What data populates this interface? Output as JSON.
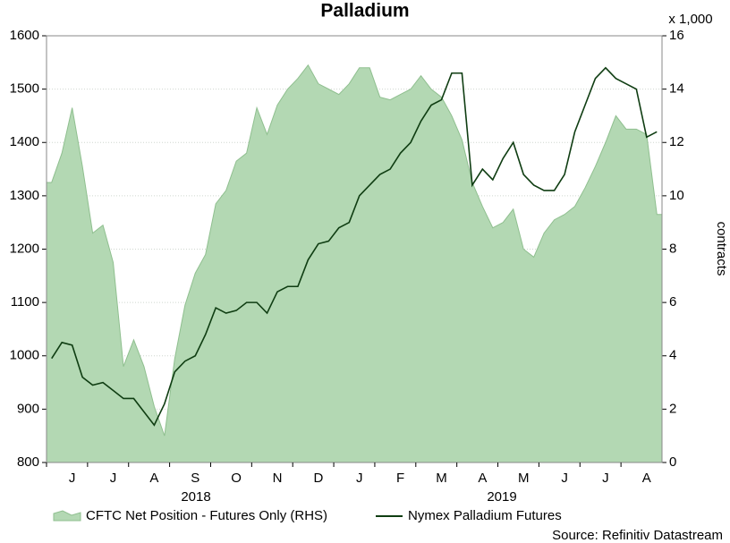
{
  "chart_data": {
    "type": "line",
    "title": "Palladium",
    "y2_unit": "x 1,000",
    "y2_label": "contracts",
    "year_labels": [
      "2018",
      "2019"
    ],
    "source": "Source: Refinitiv Datastream",
    "categories": [
      null,
      null,
      "J",
      null,
      null,
      null,
      "J",
      null,
      null,
      null,
      "A",
      null,
      null,
      null,
      "S",
      null,
      null,
      null,
      "O",
      null,
      null,
      null,
      "N",
      null,
      null,
      null,
      "D",
      null,
      null,
      null,
      "J",
      null,
      null,
      null,
      "F",
      null,
      null,
      null,
      "M",
      null,
      null,
      null,
      "A",
      null,
      null,
      null,
      "M",
      null,
      null,
      null,
      "J",
      null,
      null,
      null,
      "J",
      null,
      null,
      null,
      "A",
      null
    ],
    "ylim": [
      800,
      1600
    ],
    "yticks": [
      800,
      900,
      1000,
      1100,
      1200,
      1300,
      1400,
      1500,
      1600
    ],
    "y2lim": [
      0,
      16
    ],
    "y2ticks": [
      0,
      2,
      4,
      6,
      8,
      10,
      12,
      14,
      16
    ],
    "grid": true,
    "legend": "bottom",
    "series": [
      {
        "name": "CFTC Net Position - Futures Only (RHS)",
        "type": "area",
        "axis": "y2",
        "color": "#b3d8b3",
        "values": [
          10.5,
          11.6,
          13.3,
          11.1,
          8.6,
          8.9,
          7.5,
          3.6,
          4.6,
          3.6,
          2.1,
          1.0,
          3.9,
          5.9,
          7.1,
          7.8,
          9.7,
          10.2,
          11.3,
          11.6,
          13.3,
          12.3,
          13.4,
          14.0,
          14.4,
          14.9,
          14.2,
          14.0,
          13.8,
          14.2,
          14.8,
          14.8,
          13.7,
          13.6,
          13.8,
          14.0,
          14.5,
          14.0,
          13.7,
          13.0,
          12.1,
          10.5,
          9.6,
          8.8,
          9.0,
          9.5,
          8.0,
          7.7,
          8.6,
          9.1,
          9.3,
          9.6,
          10.3,
          11.1,
          12.0,
          13.0,
          12.5,
          12.5,
          12.3,
          9.3
        ]
      },
      {
        "name": "Nymex Palladium Futures",
        "type": "line",
        "color": "#0f3d12",
        "values": [
          995,
          1025,
          1020,
          960,
          945,
          950,
          935,
          920,
          920,
          895,
          870,
          910,
          970,
          990,
          1000,
          1040,
          1090,
          1080,
          1085,
          1100,
          1100,
          1080,
          1120,
          1130,
          1130,
          1180,
          1210,
          1215,
          1240,
          1250,
          1300,
          1320,
          1340,
          1350,
          1380,
          1400,
          1440,
          1470,
          1480,
          1530,
          1530,
          1320,
          1350,
          1330,
          1370,
          1400,
          1340,
          1320,
          1310,
          1310,
          1340,
          1420,
          1470,
          1520,
          1540,
          1520,
          1510,
          1500,
          1410,
          1420
        ]
      }
    ]
  }
}
